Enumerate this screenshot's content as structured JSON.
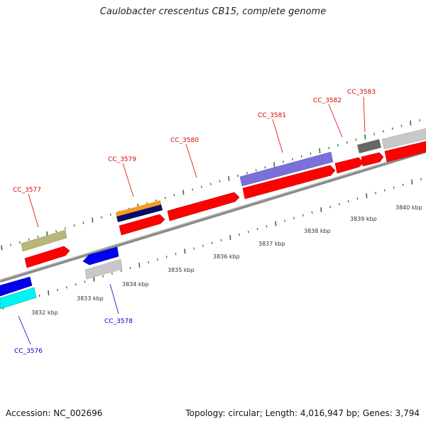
{
  "title": "Caulobacter crescentus CB15, complete genome",
  "footer": {
    "accession": "Accession: NC_002696",
    "summary": "Topology: circular; Length: 4,016,947 bp; Genes: 3,794"
  },
  "colors": {
    "forward_label": "#dd0000",
    "reverse_label": "#0000cc",
    "tick": "#2a7a2a",
    "axis": "#888888",
    "cds": "#ff0000",
    "reverse_cds": "#0000ee",
    "olive": "#b8b77a",
    "orange": "#f79a1f",
    "navy": "#0a0a6a",
    "purple": "#7a70d8",
    "grey": "#c8c8c8",
    "dark_grey": "#666666",
    "cyan": "#00f5f5"
  },
  "scale": {
    "unit": "kbp",
    "ticks": [
      {
        "value": 3832,
        "label": "3832 kbp"
      },
      {
        "value": 3833,
        "label": "3833 kbp"
      },
      {
        "value": 3834,
        "label": "3834 kbp"
      },
      {
        "value": 3835,
        "label": "3835 kbp"
      },
      {
        "value": 3836,
        "label": "3836 kbp"
      },
      {
        "value": 3837,
        "label": "3837 kbp"
      },
      {
        "value": 3838,
        "label": "3838 kbp"
      },
      {
        "value": 3839,
        "label": "3839 kbp"
      },
      {
        "value": 3840,
        "label": "3840 kbp"
      }
    ]
  },
  "gene_labels": [
    {
      "name": "CC_3576",
      "strand": "reverse"
    },
    {
      "name": "CC_3577",
      "strand": "forward"
    },
    {
      "name": "CC_3578",
      "strand": "reverse"
    },
    {
      "name": "CC_3579",
      "strand": "forward"
    },
    {
      "name": "CC_3580",
      "strand": "forward"
    },
    {
      "name": "CC_3581",
      "strand": "forward"
    },
    {
      "name": "CC_3582",
      "strand": "forward"
    },
    {
      "name": "CC_3583",
      "strand": "forward"
    }
  ]
}
